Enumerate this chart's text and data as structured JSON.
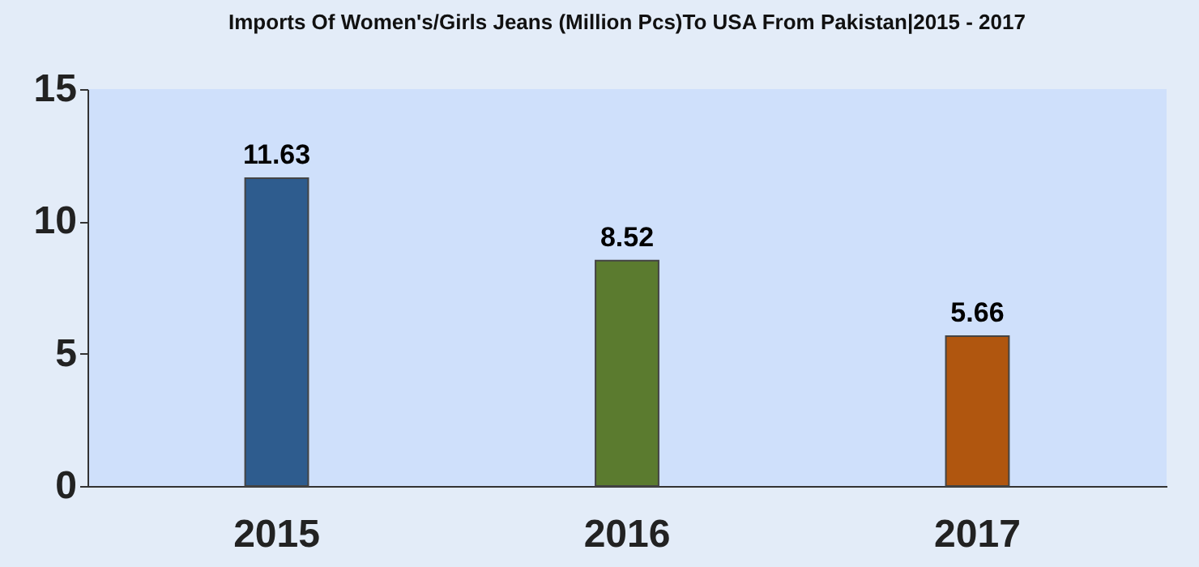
{
  "chart_data": {
    "type": "bar",
    "title": "Imports Of Women's/Girls Jeans (Million Pcs)To USA From Pakistan|2015 - 2017",
    "categories": [
      "2015",
      "2016",
      "2017"
    ],
    "values": [
      11.63,
      8.52,
      5.66
    ],
    "colors": [
      "#2e5c8e",
      "#5b7b2f",
      "#b0560f"
    ],
    "ylim": [
      0,
      15
    ],
    "yticks": [
      0,
      5,
      10,
      15
    ],
    "data_labels": true
  }
}
